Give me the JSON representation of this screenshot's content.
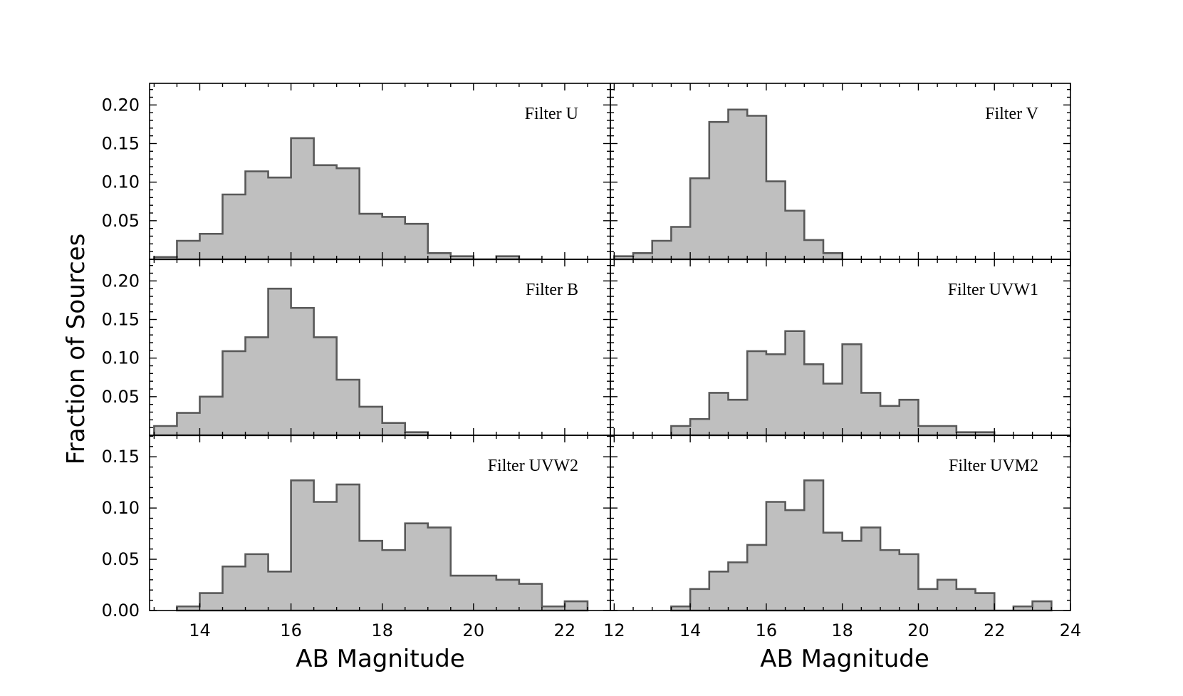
{
  "chart_data": [
    {
      "type": "bar",
      "title": "Filter U",
      "xlabel": "",
      "ylabel": "",
      "bin_width": 0.5,
      "bin_starts": [
        13.0,
        13.5,
        14.0,
        14.5,
        15.0,
        15.5,
        16.0,
        16.5,
        17.0,
        17.5,
        18.0,
        18.5,
        19.0,
        19.5,
        20.0,
        20.5,
        21.0
      ],
      "values": [
        0.003,
        0.024,
        0.033,
        0.084,
        0.114,
        0.106,
        0.157,
        0.122,
        0.118,
        0.059,
        0.055,
        0.046,
        0.008,
        0.004,
        0.0,
        0.004,
        0.0
      ],
      "xlim": [
        12.9,
        23.0
      ],
      "ylim": [
        0,
        0.228
      ],
      "yticks": [
        "0.05",
        "0.10",
        "0.15",
        "0.20"
      ]
    },
    {
      "type": "bar",
      "title": "Filter V",
      "xlabel": "",
      "ylabel": "",
      "bin_width": 0.5,
      "bin_starts": [
        12.0,
        12.5,
        13.0,
        13.5,
        14.0,
        14.5,
        15.0,
        15.5,
        16.0,
        16.5,
        17.0,
        17.5
      ],
      "values": [
        0.004,
        0.008,
        0.024,
        0.042,
        0.105,
        0.178,
        0.194,
        0.186,
        0.101,
        0.063,
        0.025,
        0.008
      ],
      "xlim": [
        11.9,
        24.0
      ],
      "ylim": [
        0,
        0.228
      ],
      "yticks": []
    },
    {
      "type": "bar",
      "title": "Filter B",
      "xlabel": "",
      "ylabel": "Fraction of Sources",
      "bin_width": 0.5,
      "bin_starts": [
        13.0,
        13.5,
        14.0,
        14.5,
        15.0,
        15.5,
        16.0,
        16.5,
        17.0,
        17.5,
        18.0,
        18.5
      ],
      "values": [
        0.012,
        0.029,
        0.05,
        0.109,
        0.127,
        0.19,
        0.165,
        0.127,
        0.072,
        0.037,
        0.016,
        0.004
      ],
      "xlim": [
        12.9,
        23.0
      ],
      "ylim": [
        0,
        0.228
      ],
      "yticks": [
        "0.05",
        "0.10",
        "0.15",
        "0.20"
      ]
    },
    {
      "type": "bar",
      "title": "Filter UVW1",
      "xlabel": "",
      "ylabel": "",
      "bin_width": 0.5,
      "bin_starts": [
        13.5,
        14.0,
        14.5,
        15.0,
        15.5,
        16.0,
        16.5,
        17.0,
        17.5,
        18.0,
        18.5,
        19.0,
        19.5,
        20.0,
        20.5,
        21.0,
        21.5
      ],
      "values": [
        0.012,
        0.021,
        0.055,
        0.046,
        0.109,
        0.105,
        0.135,
        0.092,
        0.067,
        0.118,
        0.055,
        0.038,
        0.046,
        0.012,
        0.012,
        0.004,
        0.004
      ],
      "xlim": [
        11.9,
        24.0
      ],
      "ylim": [
        0,
        0.228
      ],
      "yticks": []
    },
    {
      "type": "bar",
      "title": "Filter UVW2",
      "xlabel": "AB Magnitude",
      "ylabel": "",
      "bin_width": 0.5,
      "bin_starts": [
        13.5,
        14.0,
        14.5,
        15.0,
        15.5,
        16.0,
        16.5,
        17.0,
        17.5,
        18.0,
        18.5,
        19.0,
        19.5,
        20.0,
        20.5,
        21.0,
        21.5,
        22.0
      ],
      "values": [
        0.004,
        0.017,
        0.043,
        0.055,
        0.038,
        0.127,
        0.106,
        0.123,
        0.068,
        0.059,
        0.085,
        0.081,
        0.034,
        0.034,
        0.03,
        0.026,
        0.004,
        0.009
      ],
      "xlim": [
        12.9,
        23.0
      ],
      "ylim": [
        0,
        0.171
      ],
      "yticks": [
        "0.00",
        "0.05",
        "0.10",
        "0.15"
      ],
      "xticks": [
        "14",
        "16",
        "18",
        "20",
        "22"
      ]
    },
    {
      "type": "bar",
      "title": "Filter UVM2",
      "xlabel": "AB Magnitude",
      "ylabel": "",
      "bin_width": 0.5,
      "bin_starts": [
        13.5,
        14.0,
        14.5,
        15.0,
        15.5,
        16.0,
        16.5,
        17.0,
        17.5,
        18.0,
        18.5,
        19.0,
        19.5,
        20.0,
        20.5,
        21.0,
        21.5,
        22.0,
        22.5,
        23.0
      ],
      "values": [
        0.004,
        0.021,
        0.038,
        0.047,
        0.064,
        0.106,
        0.098,
        0.127,
        0.076,
        0.068,
        0.081,
        0.059,
        0.055,
        0.021,
        0.03,
        0.021,
        0.017,
        0.0,
        0.004,
        0.009
      ],
      "xlim": [
        11.9,
        24.0
      ],
      "ylim": [
        0,
        0.171
      ],
      "yticks": [],
      "xticks": [
        "12",
        "14",
        "16",
        "18",
        "20",
        "22",
        "24"
      ]
    }
  ]
}
